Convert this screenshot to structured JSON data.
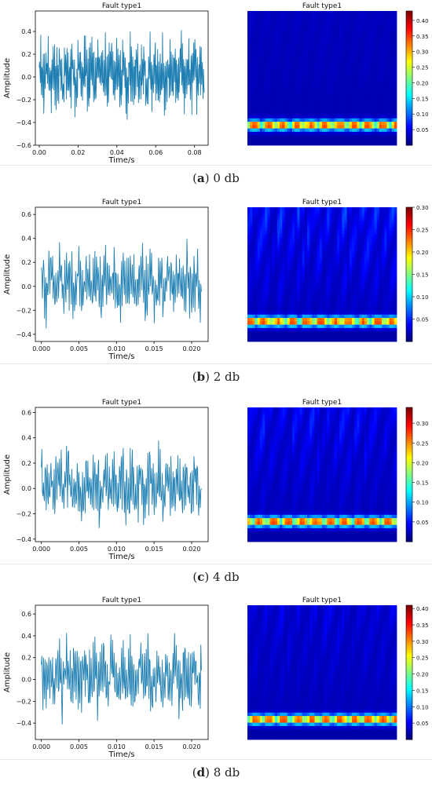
{
  "figure_colors": {
    "line": "#1f7fb2",
    "axis": "#000000"
  },
  "colormap": "jet",
  "panels": [
    {
      "caption_letter": "a",
      "caption_text": "0 db",
      "chart_data": [
        {
          "type": "line",
          "title": "Fault type1",
          "xlabel": "Time/s",
          "ylabel": "Amplitude",
          "xlim": [
            -0.002,
            0.087
          ],
          "ylim": [
            -0.6,
            0.58
          ],
          "xticks": [
            "0.00",
            "0.02",
            "0.04",
            "0.06",
            "0.08"
          ],
          "yticks": [
            "−0.6",
            "−0.4",
            "−0.2",
            "0.0",
            "0.2",
            "0.4"
          ],
          "x_range": [
            0.0,
            0.085
          ],
          "amplitude_envelope": [
            -0.55,
            0.52
          ],
          "samples": 440
        },
        {
          "type": "heatmap",
          "title": "Fault type1",
          "colorbar_ticks": [
            "0.05",
            "0.10",
            "0.15",
            "0.20",
            "0.25",
            "0.30",
            "0.35",
            "0.40"
          ],
          "colorbar_range": [
            0.0,
            0.43
          ],
          "energy_band": "bottom"
        }
      ]
    },
    {
      "caption_letter": "b",
      "caption_text": "2 db",
      "chart_data": [
        {
          "type": "line",
          "title": "Fault type1",
          "xlabel": "Time/s",
          "ylabel": "Amplitude",
          "xlim": [
            -0.0008,
            0.0222
          ],
          "ylim": [
            -0.46,
            0.66
          ],
          "xticks": [
            "0.000",
            "0.005",
            "0.010",
            "0.015",
            "0.020"
          ],
          "yticks": [
            "−0.4",
            "−0.2",
            "0.0",
            "0.2",
            "0.4",
            "0.6"
          ],
          "x_range": [
            0.0,
            0.0213
          ],
          "amplitude_envelope": [
            -0.43,
            0.58
          ],
          "samples": 300
        },
        {
          "type": "heatmap",
          "title": "Fault type1",
          "colorbar_ticks": [
            "0.05",
            "0.10",
            "0.15",
            "0.20",
            "0.25",
            "0.30"
          ],
          "colorbar_range": [
            0.0,
            0.3
          ],
          "energy_band": "bottom"
        }
      ]
    },
    {
      "caption_letter": "c",
      "caption_text": "4 db",
      "chart_data": [
        {
          "type": "line",
          "title": "Fault type1",
          "xlabel": "Time/s",
          "ylabel": "Amplitude",
          "xlim": [
            -0.0008,
            0.0222
          ],
          "ylim": [
            -0.42,
            0.64
          ],
          "xticks": [
            "0.000",
            "0.005",
            "0.010",
            "0.015",
            "0.020"
          ],
          "yticks": [
            "−0.4",
            "−0.2",
            "0.0",
            "0.2",
            "0.4",
            "0.6"
          ],
          "x_range": [
            0.0,
            0.0213
          ],
          "amplitude_envelope": [
            -0.38,
            0.59
          ],
          "samples": 300
        },
        {
          "type": "heatmap",
          "title": "Fault type1",
          "colorbar_ticks": [
            "0.05",
            "0.10",
            "0.15",
            "0.20",
            "0.25",
            "0.30"
          ],
          "colorbar_range": [
            0.0,
            0.34
          ],
          "energy_band": "bottom"
        }
      ]
    },
    {
      "caption_letter": "d",
      "caption_text": "8 db",
      "chart_data": [
        {
          "type": "line",
          "title": "Fault type1",
          "xlabel": "Time/s",
          "ylabel": "Amplitude",
          "xlim": [
            -0.0008,
            0.0222
          ],
          "ylim": [
            -0.55,
            0.68
          ],
          "xticks": [
            "0.000",
            "0.005",
            "0.010",
            "0.015",
            "0.020"
          ],
          "yticks": [
            "−0.4",
            "−0.2",
            "0.0",
            "0.2",
            "0.4",
            "0.6"
          ],
          "x_range": [
            0.0,
            0.0213
          ],
          "amplitude_envelope": [
            -0.52,
            0.62
          ],
          "samples": 300
        },
        {
          "type": "heatmap",
          "title": "Fault type1",
          "colorbar_ticks": [
            "0.05",
            "0.10",
            "0.15",
            "0.20",
            "0.25",
            "0.30",
            "0.35",
            "0.40"
          ],
          "colorbar_range": [
            0.0,
            0.41
          ],
          "energy_band": "bottom"
        }
      ]
    }
  ]
}
